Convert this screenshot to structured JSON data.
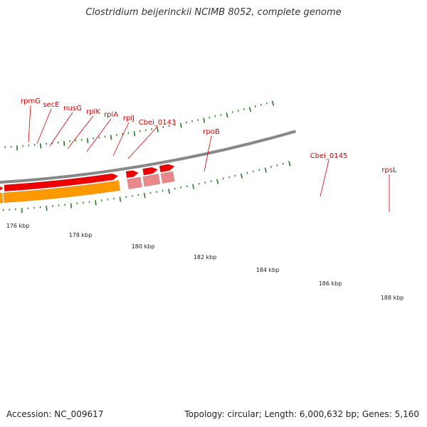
{
  "title": "Clostridium beijerinckii NCIMB 8052, complete genome",
  "footer": {
    "accession": "Accession: NC_009617",
    "summary": "Topology: circular; Length: 6,000,632 bp; Genes: 5,160"
  },
  "colors": {
    "gene_forward": "#ee0000",
    "gene_muted": "#e8888a",
    "cds_orange": "#ff9900",
    "cds_green": "#99e033",
    "backbone": "#888888",
    "label": "#cc0000",
    "tick": "#1e7d1e"
  },
  "genes": [
    {
      "name": "rpmG"
    },
    {
      "name": "secE"
    },
    {
      "name": "nusG"
    },
    {
      "name": "rplK"
    },
    {
      "name": "rplA"
    },
    {
      "name": "rplJ"
    },
    {
      "name": "Cbei_0143"
    },
    {
      "name": "rpoB"
    },
    {
      "name": "Cbei_0145"
    },
    {
      "name": "rpsL"
    }
  ],
  "scale_labels": [
    "176 kbp",
    "178 kbp",
    "180 kbp",
    "182 kbp",
    "184 kbp",
    "186 kbp",
    "188 kbp"
  ]
}
